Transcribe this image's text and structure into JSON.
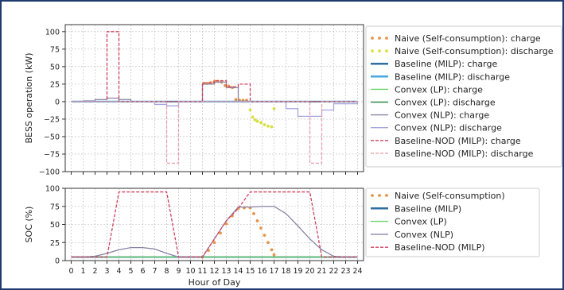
{
  "colors": {
    "naive_charge": "#e8944a",
    "naive_discharge": "#d8e040",
    "baseline_charge": "#2e6ea0",
    "baseline_discharge": "#46a8de",
    "convex_lp_charge": "#6cd46c",
    "convex_lp_discharge": "#2c8a4a",
    "convex_nlp_charge": "#8884a6",
    "convex_nlp_discharge": "#a4a4e0",
    "nod_charge": "#d0405c",
    "nod_discharge": "#e8a0ac",
    "grid": "#b8b8b8",
    "frame_border": "#1f3a6e"
  },
  "chart_data": [
    {
      "type": "line",
      "ylabel": "BESS operation (kW)",
      "ylim": [
        -100,
        110
      ],
      "yticks": [
        100,
        75,
        50,
        25,
        0,
        -25,
        -50,
        -75,
        -100
      ],
      "xlim": [
        -0.5,
        24.5
      ],
      "grid": true,
      "legend_position": "right",
      "series": [
        {
          "name": "Naive (Self-consumption): charge",
          "key": "naive_charge",
          "style": "dots",
          "x": [
            11.1,
            11.4,
            11.7,
            12.0,
            12.3,
            12.6,
            12.9,
            13.2,
            13.5,
            13.8,
            14.1,
            14.4,
            14.7
          ],
          "y": [
            26,
            26,
            27,
            29,
            29,
            28,
            23,
            22,
            20,
            3,
            2,
            2,
            2
          ]
        },
        {
          "name": "Naive (Self-consumption): discharge",
          "key": "naive_discharge",
          "style": "dots",
          "x": [
            15.0,
            15.2,
            15.4,
            15.6,
            15.9,
            16.2,
            16.5,
            16.8,
            17.0
          ],
          "y": [
            -12,
            -22,
            -26,
            -28,
            -30,
            -33,
            -35,
            -36,
            -10
          ]
        },
        {
          "name": "Baseline (MILP): charge",
          "key": "baseline_charge",
          "style": "step",
          "x": [
            0,
            3,
            4,
            24
          ],
          "y": [
            0,
            0,
            0,
            0
          ]
        },
        {
          "name": "Baseline (MILP): discharge",
          "key": "baseline_discharge",
          "style": "step",
          "x": [
            0,
            24
          ],
          "y": [
            0,
            0
          ]
        },
        {
          "name": "Convex (LP): charge",
          "key": "convex_lp_charge",
          "style": "step",
          "x": [
            0,
            24
          ],
          "y": [
            0,
            0
          ]
        },
        {
          "name": "Convex (LP): discharge",
          "key": "convex_lp_discharge",
          "style": "step",
          "x": [
            0,
            24
          ],
          "y": [
            0,
            0
          ]
        },
        {
          "name": "Convex (NLP): charge",
          "key": "convex_nlp_charge",
          "style": "step",
          "x": [
            0,
            1,
            2,
            3,
            4,
            5,
            11,
            12,
            13,
            14,
            15,
            24
          ],
          "y": [
            0,
            1,
            3,
            5,
            3,
            0,
            25,
            28,
            20,
            0,
            0,
            0
          ]
        },
        {
          "name": "Convex (NLP): discharge",
          "key": "convex_nlp_discharge",
          "style": "step",
          "x": [
            0,
            7,
            8,
            9,
            17,
            18,
            19,
            21,
            22,
            24
          ],
          "y": [
            0,
            -4,
            -6,
            0,
            0,
            -10,
            -21,
            -12,
            -3,
            0
          ]
        },
        {
          "name": "Baseline-NOD (MILP): charge",
          "key": "nod_charge",
          "style": "step_dashed",
          "x": [
            0,
            3,
            4,
            11,
            12,
            13,
            14,
            15,
            24
          ],
          "y": [
            0,
            100,
            0,
            27,
            30,
            21,
            25,
            0,
            0
          ]
        },
        {
          "name": "Baseline-NOD (MILP): discharge",
          "key": "nod_discharge",
          "style": "step_dashed",
          "x": [
            0,
            8,
            9,
            20,
            21,
            24
          ],
          "y": [
            0,
            -88,
            0,
            -88,
            0,
            0
          ]
        }
      ]
    },
    {
      "type": "line",
      "xlabel": "Hour of Day",
      "ylabel": "SOC (%)",
      "ylim": [
        0,
        100
      ],
      "yticks": [
        100,
        75,
        50,
        25,
        0
      ],
      "xlim": [
        -0.5,
        24.5
      ],
      "xticks": [
        "0",
        "1",
        "2",
        "3",
        "4",
        "5",
        "6",
        "7",
        "8",
        "9",
        "10",
        "11",
        "12",
        "13",
        "14",
        "15",
        "16",
        "17",
        "18",
        "19",
        "20",
        "21",
        "22",
        "23",
        "24"
      ],
      "grid": true,
      "legend_position": "right",
      "series": [
        {
          "name": "Naive (Self-consumption)",
          "key": "naive_charge",
          "style": "dots",
          "x": [
            11.0,
            11.5,
            12.0,
            12.5,
            13.0,
            13.5,
            14.0,
            14.5,
            15.0,
            15.3,
            15.6,
            15.9,
            16.2,
            16.5,
            16.8,
            17.0
          ],
          "y": [
            5,
            14,
            25,
            38,
            51,
            62,
            72,
            73,
            73,
            65,
            55,
            45,
            35,
            25,
            15,
            8
          ]
        },
        {
          "name": "Baseline (MILP)",
          "key": "baseline_charge",
          "style": "line",
          "x": [
            0,
            24
          ],
          "y": [
            5,
            5
          ]
        },
        {
          "name": "Convex (LP)",
          "key": "convex_lp_charge",
          "style": "line",
          "x": [
            0,
            24
          ],
          "y": [
            5,
            5
          ]
        },
        {
          "name": "Convex (NLP)",
          "key": "convex_nlp_charge",
          "style": "line",
          "x": [
            0,
            1,
            2,
            3,
            4,
            5,
            6,
            7,
            8,
            9,
            10,
            11,
            12,
            13,
            14,
            15,
            16,
            17,
            18,
            19,
            20,
            21,
            22,
            23,
            24
          ],
          "y": [
            5,
            5,
            6,
            10,
            15,
            18,
            18,
            16,
            10,
            5,
            5,
            5,
            30,
            55,
            74,
            74,
            75,
            75,
            65,
            48,
            30,
            15,
            6,
            5,
            5
          ]
        },
        {
          "name": "Baseline-NOD (MILP)",
          "key": "nod_charge",
          "style": "dashed",
          "x": [
            0,
            1,
            2,
            3,
            4,
            5,
            6,
            7,
            8,
            9,
            10,
            11,
            12,
            13,
            14,
            15,
            16,
            17,
            18,
            19,
            20,
            21,
            22,
            23,
            24
          ],
          "y": [
            5,
            5,
            5,
            5,
            95,
            95,
            95,
            95,
            95,
            5,
            5,
            5,
            30,
            55,
            72,
            95,
            95,
            95,
            95,
            95,
            95,
            5,
            5,
            5,
            5
          ]
        }
      ]
    }
  ]
}
